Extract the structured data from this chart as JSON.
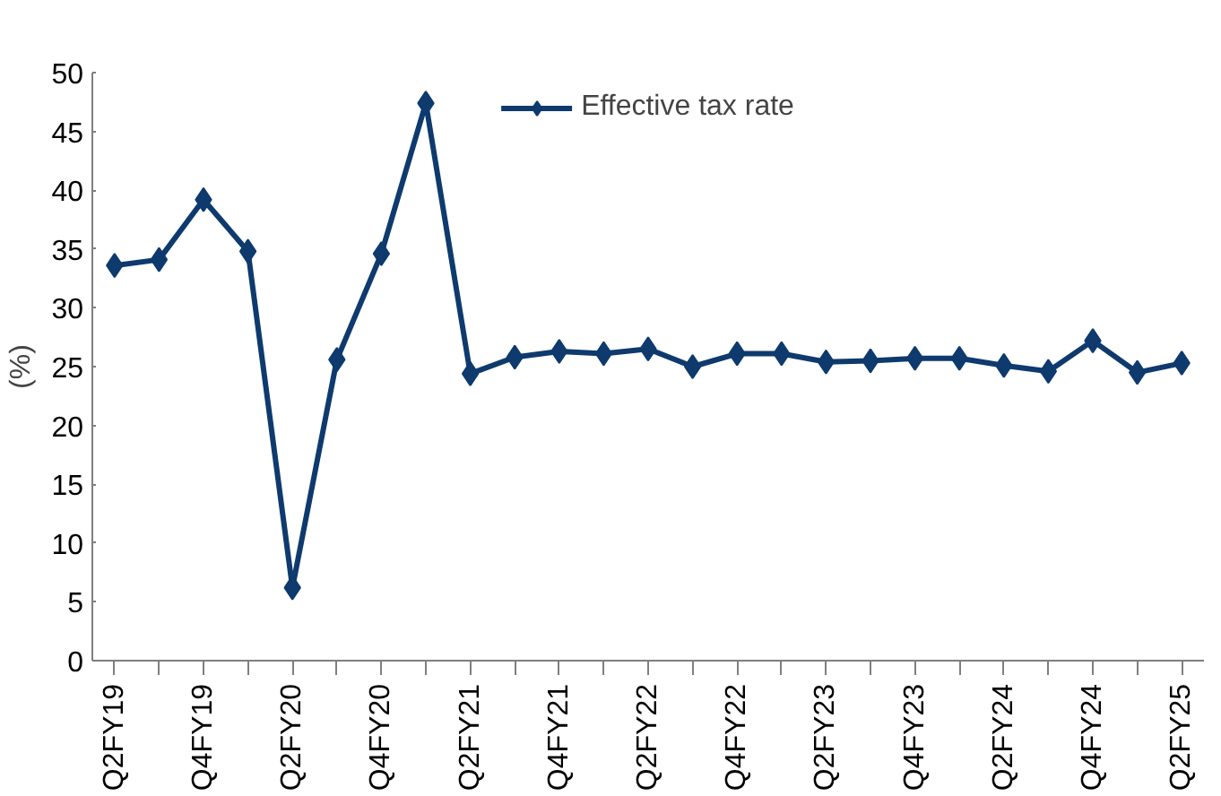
{
  "chart_data": {
    "type": "line",
    "ylabel": "(%)",
    "categories": [
      "Q2FY19",
      null,
      "Q4FY19",
      null,
      "Q2FY20",
      null,
      "Q4FY20",
      null,
      "Q2FY21",
      null,
      "Q4FY21",
      null,
      "Q2FY22",
      null,
      "Q4FY22",
      null,
      "Q2FY23",
      null,
      "Q4FY23",
      null,
      "Q2FY24",
      null,
      "Q4FY24",
      null,
      "Q2FY25"
    ],
    "series": [
      {
        "name": "Effective tax rate",
        "color": "#0e3a6e",
        "values": [
          33.6,
          34.1,
          39.2,
          34.8,
          6.2,
          25.6,
          34.6,
          47.4,
          24.4,
          25.8,
          26.3,
          26.1,
          26.5,
          25.0,
          26.1,
          26.1,
          25.4,
          25.5,
          25.7,
          25.7,
          25.1,
          24.6,
          27.2,
          24.5,
          25.3
        ]
      }
    ],
    "ylim": [
      0,
      50
    ],
    "yticks": [
      0,
      5,
      10,
      15,
      20,
      25,
      30,
      35,
      40,
      45,
      50
    ],
    "grid": false,
    "legend": "top",
    "marker": "diamond",
    "line_style": "solid"
  }
}
